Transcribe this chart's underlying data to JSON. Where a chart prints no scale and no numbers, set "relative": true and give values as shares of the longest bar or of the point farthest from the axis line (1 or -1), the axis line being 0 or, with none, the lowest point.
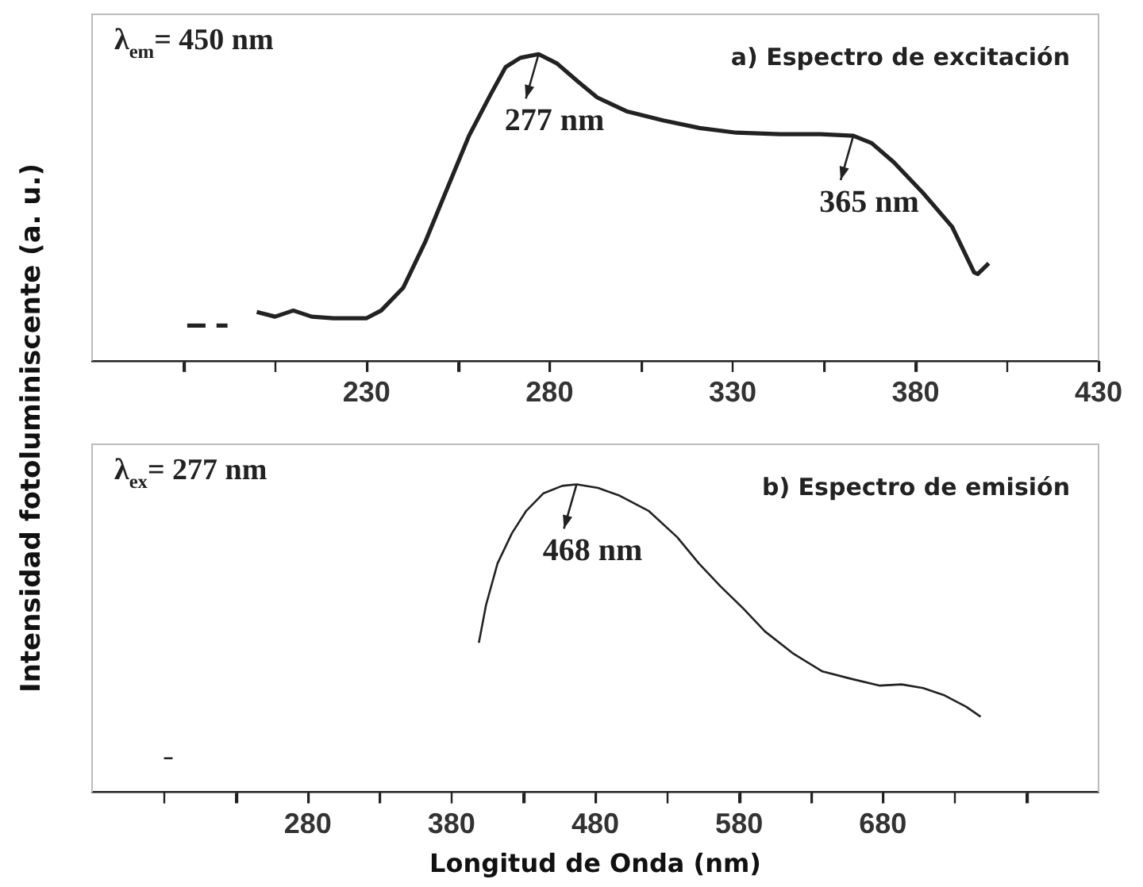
{
  "chart_data": [
    {
      "type": "line",
      "ylabel": "Intensidad fotoluminiscente (a. u.)",
      "relative": true,
      "grid": false,
      "legend": false,
      "marker": "none",
      "line_style": "solid",
      "tick_labels": "x",
      "annotations": [
        "λ$_{em}$= 450 nm",
        "a) Espectro de excitación",
        {
          "text": "277 nm",
          "x": 277,
          "y": 1.0
        },
        {
          "text": "365 nm",
          "x": 363,
          "y": 0.734
        }
      ],
      "xlim": [
        155,
        430
      ],
      "xticks": [
        {
          "value": 180,
          "label": null
        },
        {
          "value": 205,
          "label": null
        },
        230,
        {
          "value": 255,
          "label": null
        },
        280,
        {
          "value": 305,
          "label": null
        },
        330,
        {
          "value": 355,
          "label": null
        },
        380,
        {
          "value": 405,
          "label": null
        },
        430
      ],
      "series": [
        {
          "color": "#222222",
          "x": [
            181,
            186
          ],
          "values": [
            0.115,
            0.115
          ]
        },
        {
          "color": "#222222",
          "x": [
            189,
            192
          ],
          "values": [
            0.115,
            0.115
          ]
        },
        {
          "color": "#222222",
          "x": [
            200,
            205,
            210,
            215,
            221,
            230,
            234,
            240,
            246,
            252,
            258,
            264,
            268,
            272,
            277,
            282,
            288,
            293,
            301,
            311,
            321,
            331,
            343,
            354,
            363,
            368,
            374,
            382,
            390,
            396,
            397,
            400
          ],
          "values": [
            0.159,
            0.144,
            0.164,
            0.144,
            0.139,
            0.139,
            0.164,
            0.238,
            0.387,
            0.561,
            0.734,
            0.871,
            0.958,
            0.988,
            1.0,
            0.97,
            0.908,
            0.859,
            0.814,
            0.784,
            0.759,
            0.744,
            0.739,
            0.739,
            0.734,
            0.71,
            0.648,
            0.548,
            0.437,
            0.288,
            0.283,
            0.318
          ]
        }
      ]
    },
    {
      "type": "line",
      "xlabel": "Longitud de Onda (nm)",
      "relative": true,
      "grid": false,
      "legend": false,
      "marker": "none",
      "line_style": "solid",
      "tick_labels": "x",
      "annotations": [
        "λ$_{ex}$= 277 nm",
        "b) Espectro de emisión",
        {
          "text": "468 nm",
          "x": 467,
          "y": 1.0
        }
      ],
      "xlim": [
        130,
        830
      ],
      "xticks": [
        {
          "value": 180,
          "label": null
        },
        {
          "value": 230,
          "label": null
        },
        280,
        {
          "value": 330,
          "label": null
        },
        380,
        {
          "value": 430,
          "label": null
        },
        480,
        {
          "value": 530,
          "label": null
        },
        580,
        {
          "value": 630,
          "label": null
        },
        680,
        {
          "value": 730,
          "label": null
        },
        {
          "value": 780,
          "label": null
        }
      ],
      "series": [
        {
          "color": "#222222",
          "x": [
            180,
            186
          ],
          "values": [
            0.11,
            0.11
          ]
        },
        {
          "color": "#222222",
          "x": [
            399,
            404,
            412,
            422,
            432,
            444,
            457,
            467,
            482,
            497,
            517,
            537,
            552,
            567,
            583,
            598,
            618,
            638,
            658,
            678,
            693,
            708,
            723,
            738,
            748
          ],
          "values": [
            0.485,
            0.608,
            0.743,
            0.841,
            0.914,
            0.971,
            0.995,
            1.0,
            0.988,
            0.963,
            0.914,
            0.828,
            0.743,
            0.669,
            0.596,
            0.522,
            0.449,
            0.392,
            0.368,
            0.346,
            0.35,
            0.338,
            0.314,
            0.277,
            0.245
          ]
        }
      ]
    }
  ]
}
